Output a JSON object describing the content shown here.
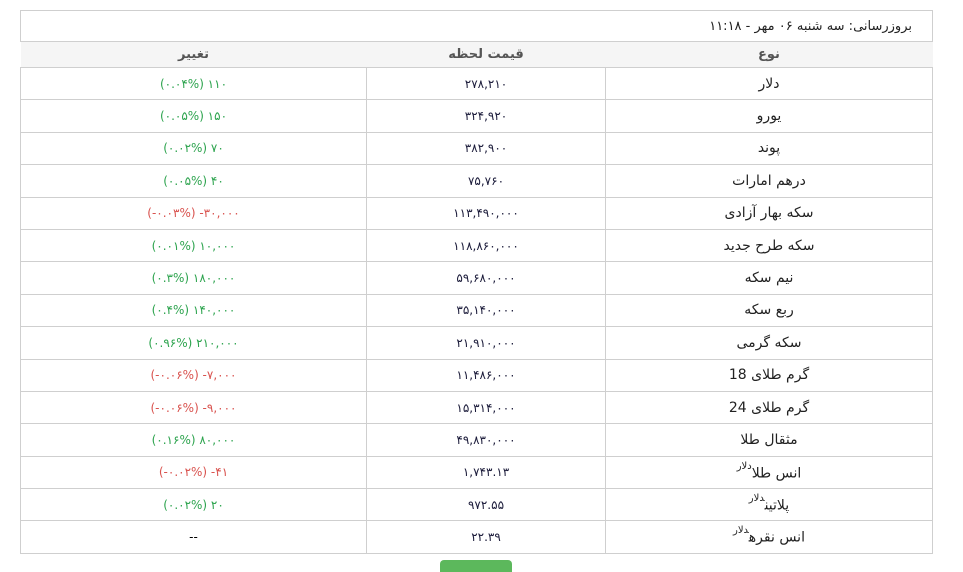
{
  "title": "بروزرسانی: سه شنبه ۰۶ مهر - ۱۱:۱۸",
  "headers": {
    "type": "نوع",
    "price": "قیمت لحظه",
    "change": "تغییر"
  },
  "colors": {
    "up": "#2ea44f",
    "down": "#d9534f"
  },
  "rows": [
    {
      "name": "دلار",
      "sup": "",
      "price": "۲۷۸,۲۱۰",
      "change": "(۰.۰۴%) ۱۱۰",
      "dir": "up"
    },
    {
      "name": "یورو",
      "sup": "",
      "price": "۳۲۴,۹۲۰",
      "change": "(۰.۰۵%) ۱۵۰",
      "dir": "up"
    },
    {
      "name": "پوند",
      "sup": "",
      "price": "۳۸۲,۹۰۰",
      "change": "(۰.۰۲%) ۷۰",
      "dir": "up"
    },
    {
      "name": "درهم امارات",
      "sup": "",
      "price": "۷۵,۷۶۰",
      "change": "(۰.۰۵%) ۴۰",
      "dir": "up"
    },
    {
      "name": "سکه بهار آزادی",
      "sup": "",
      "price": "۱۱۳,۴۹۰,۰۰۰",
      "change": "(-۰.۰۳%) -۳۰,۰۰۰",
      "dir": "down"
    },
    {
      "name": "سکه طرح جدید",
      "sup": "",
      "price": "۱۱۸,۸۶۰,۰۰۰",
      "change": "(۰.۰۱%) ۱۰,۰۰۰",
      "dir": "up"
    },
    {
      "name": "نیم سکه",
      "sup": "",
      "price": "۵۹,۶۸۰,۰۰۰",
      "change": "(۰.۳%) ۱۸۰,۰۰۰",
      "dir": "up"
    },
    {
      "name": "ربع سکه",
      "sup": "",
      "price": "۳۵,۱۴۰,۰۰۰",
      "change": "(۰.۴%) ۱۴۰,۰۰۰",
      "dir": "up"
    },
    {
      "name": "سکه گرمی",
      "sup": "",
      "price": "۲۱,۹۱۰,۰۰۰",
      "change": "(۰.۹۶%) ۲۱۰,۰۰۰",
      "dir": "up"
    },
    {
      "name": "گرم طلای 18",
      "sup": "",
      "price": "۱۱,۴۸۶,۰۰۰",
      "change": "(-۰.۰۶%) -۷,۰۰۰",
      "dir": "down"
    },
    {
      "name": "گرم طلای 24",
      "sup": "",
      "price": "۱۵,۳۱۴,۰۰۰",
      "change": "(-۰.۰۶%) -۹,۰۰۰",
      "dir": "down"
    },
    {
      "name": "مثقال طلا",
      "sup": "",
      "price": "۴۹,۸۳۰,۰۰۰",
      "change": "(۰.۱۶%) ۸۰,۰۰۰",
      "dir": "up"
    },
    {
      "name": "انس طلا",
      "sup": "دلار",
      "price": "۱,۷۴۳.۱۳",
      "change": "(-۰.۰۲%) -۴۱",
      "dir": "down"
    },
    {
      "name": "پلاتین",
      "sup": "دلار",
      "price": "۹۷۲.۵۵",
      "change": "(۰.۰۲%) ۲۰",
      "dir": "up"
    },
    {
      "name": "انس نقره",
      "sup": "دلار",
      "price": "۲۲.۳۹",
      "change": "--",
      "dir": "none"
    }
  ]
}
